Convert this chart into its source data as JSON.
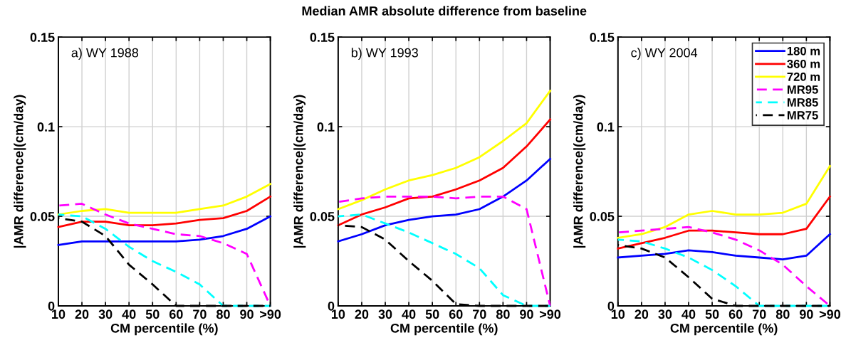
{
  "chart_data": [
    {
      "type": "line",
      "xlabel": "CM percentile (%)",
      "ylabel": "|AMR difference|(cm/day)",
      "annotations": [
        "a) WY 1988"
      ],
      "categories": [
        "10",
        "20",
        "30",
        "40",
        "50",
        "60",
        "70",
        "80",
        "90",
        ">90"
      ],
      "ylim": [
        0,
        0.15
      ],
      "yticks": [
        0,
        0.05,
        0.1,
        0.15
      ],
      "grid": true,
      "legend": false,
      "series": [
        {
          "color": "#0000ff",
          "line_style": "solid",
          "values": [
            0.034,
            0.036,
            0.036,
            0.036,
            0.036,
            0.036,
            0.037,
            0.039,
            0.043,
            0.05
          ]
        },
        {
          "color": "#ff0000",
          "line_style": "solid",
          "values": [
            0.044,
            0.047,
            0.047,
            0.045,
            0.045,
            0.046,
            0.048,
            0.049,
            0.053,
            0.061
          ]
        },
        {
          "color": "#ffff00",
          "line_style": "solid",
          "values": [
            0.051,
            0.053,
            0.054,
            0.052,
            0.052,
            0.052,
            0.054,
            0.056,
            0.061,
            0.068
          ]
        },
        {
          "color": "#ff00ff",
          "line_style": "dashed",
          "values": [
            0.056,
            0.057,
            0.051,
            0.046,
            0.043,
            0.04,
            0.039,
            0.035,
            0.029,
            0.0
          ]
        },
        {
          "color": "#00ffff",
          "line_style": "dashed",
          "values": [
            0.051,
            0.05,
            0.043,
            0.033,
            0.025,
            0.019,
            0.012,
            0.0,
            0.0,
            0.0
          ]
        },
        {
          "color": "#000000",
          "line_style": "dashed",
          "values": [
            0.049,
            0.047,
            0.039,
            0.023,
            0.012,
            0.0,
            0.0,
            0.0,
            0.0,
            0.0
          ]
        }
      ]
    },
    {
      "type": "line",
      "title": "Median AMR absolute difference from baseline",
      "xlabel": "CM percentile (%)",
      "ylabel": "|AMR difference|(cm/day)",
      "annotations": [
        "b) WY 1993"
      ],
      "categories": [
        "10",
        "20",
        "30",
        "40",
        "50",
        "60",
        "70",
        "80",
        "90",
        ">90"
      ],
      "ylim": [
        0,
        0.15
      ],
      "yticks": [
        0,
        0.05,
        0.1,
        0.15
      ],
      "grid": true,
      "legend": false,
      "series": [
        {
          "color": "#0000ff",
          "line_style": "solid",
          "values": [
            0.036,
            0.04,
            0.045,
            0.048,
            0.05,
            0.051,
            0.054,
            0.061,
            0.07,
            0.082
          ]
        },
        {
          "color": "#ff0000",
          "line_style": "solid",
          "values": [
            0.045,
            0.051,
            0.055,
            0.06,
            0.061,
            0.065,
            0.07,
            0.077,
            0.089,
            0.104
          ]
        },
        {
          "color": "#ffff00",
          "line_style": "solid",
          "values": [
            0.054,
            0.059,
            0.065,
            0.07,
            0.073,
            0.077,
            0.083,
            0.092,
            0.102,
            0.12
          ]
        },
        {
          "color": "#ff00ff",
          "line_style": "dashed",
          "values": [
            0.058,
            0.06,
            0.061,
            0.061,
            0.061,
            0.06,
            0.061,
            0.061,
            0.054,
            0.0
          ]
        },
        {
          "color": "#00ffff",
          "line_style": "dashed",
          "values": [
            0.05,
            0.051,
            0.046,
            0.041,
            0.035,
            0.029,
            0.021,
            0.006,
            0.0,
            0.0
          ]
        },
        {
          "color": "#000000",
          "line_style": "dashed",
          "values": [
            0.045,
            0.044,
            0.037,
            0.025,
            0.014,
            0.001,
            0.0,
            0.0,
            0.0,
            0.0
          ]
        }
      ]
    },
    {
      "type": "line",
      "xlabel": "CM percentile (%)",
      "ylabel": "|AMR difference|(cm/day)",
      "annotations": [
        "c) WY 2004"
      ],
      "categories": [
        "10",
        "20",
        "30",
        "40",
        "50",
        "60",
        "70",
        "80",
        "90",
        ">90"
      ],
      "ylim": [
        0,
        0.15
      ],
      "yticks": [
        0,
        0.05,
        0.1,
        0.15
      ],
      "grid": true,
      "legend": "top right",
      "series": [
        {
          "name": "180 m",
          "color": "#0000ff",
          "line_style": "solid",
          "values": [
            0.027,
            0.028,
            0.029,
            0.031,
            0.03,
            0.028,
            0.027,
            0.026,
            0.028,
            0.04
          ]
        },
        {
          "name": "360 m",
          "color": "#ff0000",
          "line_style": "solid",
          "values": [
            0.032,
            0.035,
            0.038,
            0.042,
            0.042,
            0.041,
            0.04,
            0.04,
            0.043,
            0.061
          ]
        },
        {
          "name": "720 m",
          "color": "#ffff00",
          "line_style": "solid",
          "values": [
            0.038,
            0.04,
            0.044,
            0.051,
            0.053,
            0.051,
            0.051,
            0.052,
            0.057,
            0.078
          ]
        },
        {
          "name": "MR95",
          "color": "#ff00ff",
          "line_style": "dashed",
          "values": [
            0.041,
            0.042,
            0.043,
            0.044,
            0.041,
            0.037,
            0.031,
            0.023,
            0.011,
            0.0
          ]
        },
        {
          "name": "MR85",
          "color": "#00ffff",
          "line_style": "dashed",
          "values": [
            0.037,
            0.036,
            0.032,
            0.027,
            0.02,
            0.011,
            0.0,
            0.0,
            0.0,
            0.0
          ]
        },
        {
          "name": "MR75",
          "color": "#000000",
          "line_style": "dashed",
          "values": [
            0.034,
            0.032,
            0.027,
            0.016,
            0.004,
            0.0,
            0.0,
            0.0,
            0.0,
            0.0
          ]
        }
      ]
    }
  ]
}
